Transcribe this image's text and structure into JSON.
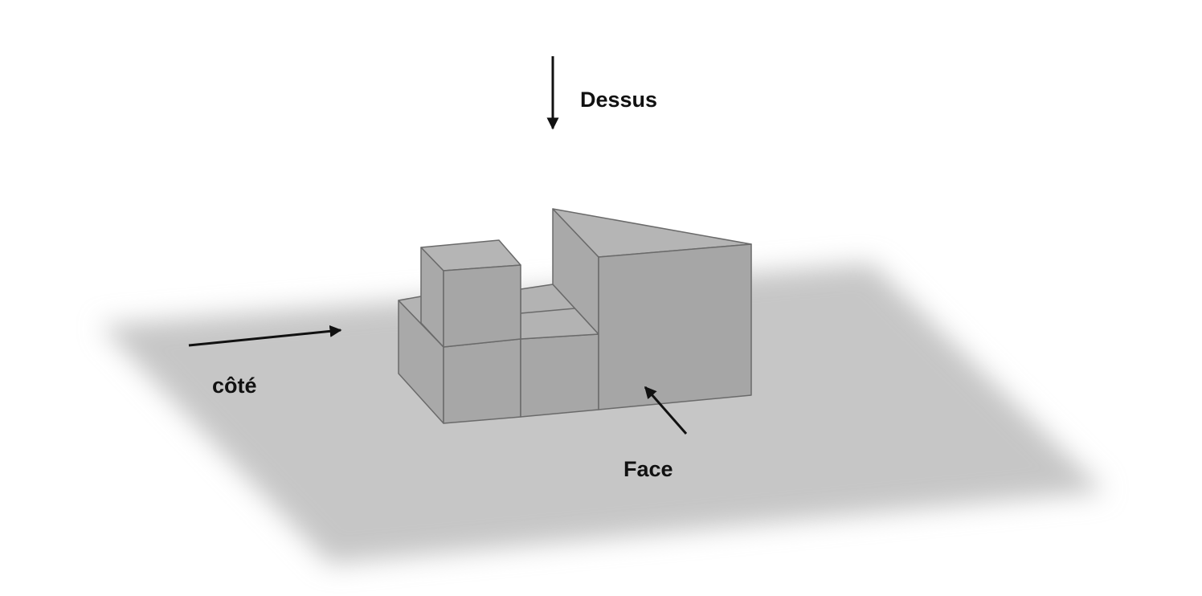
{
  "labels": {
    "top_view": "Dessus",
    "side_view": "côté",
    "front_view": "Face"
  },
  "colors": {
    "ground": "#c6c6c6",
    "face_light": "#a6a6a6",
    "face_mid": "#a9a9a9",
    "face_top": "#b5b5b5",
    "edge": "#6a6a6a",
    "arrow": "#111111"
  }
}
